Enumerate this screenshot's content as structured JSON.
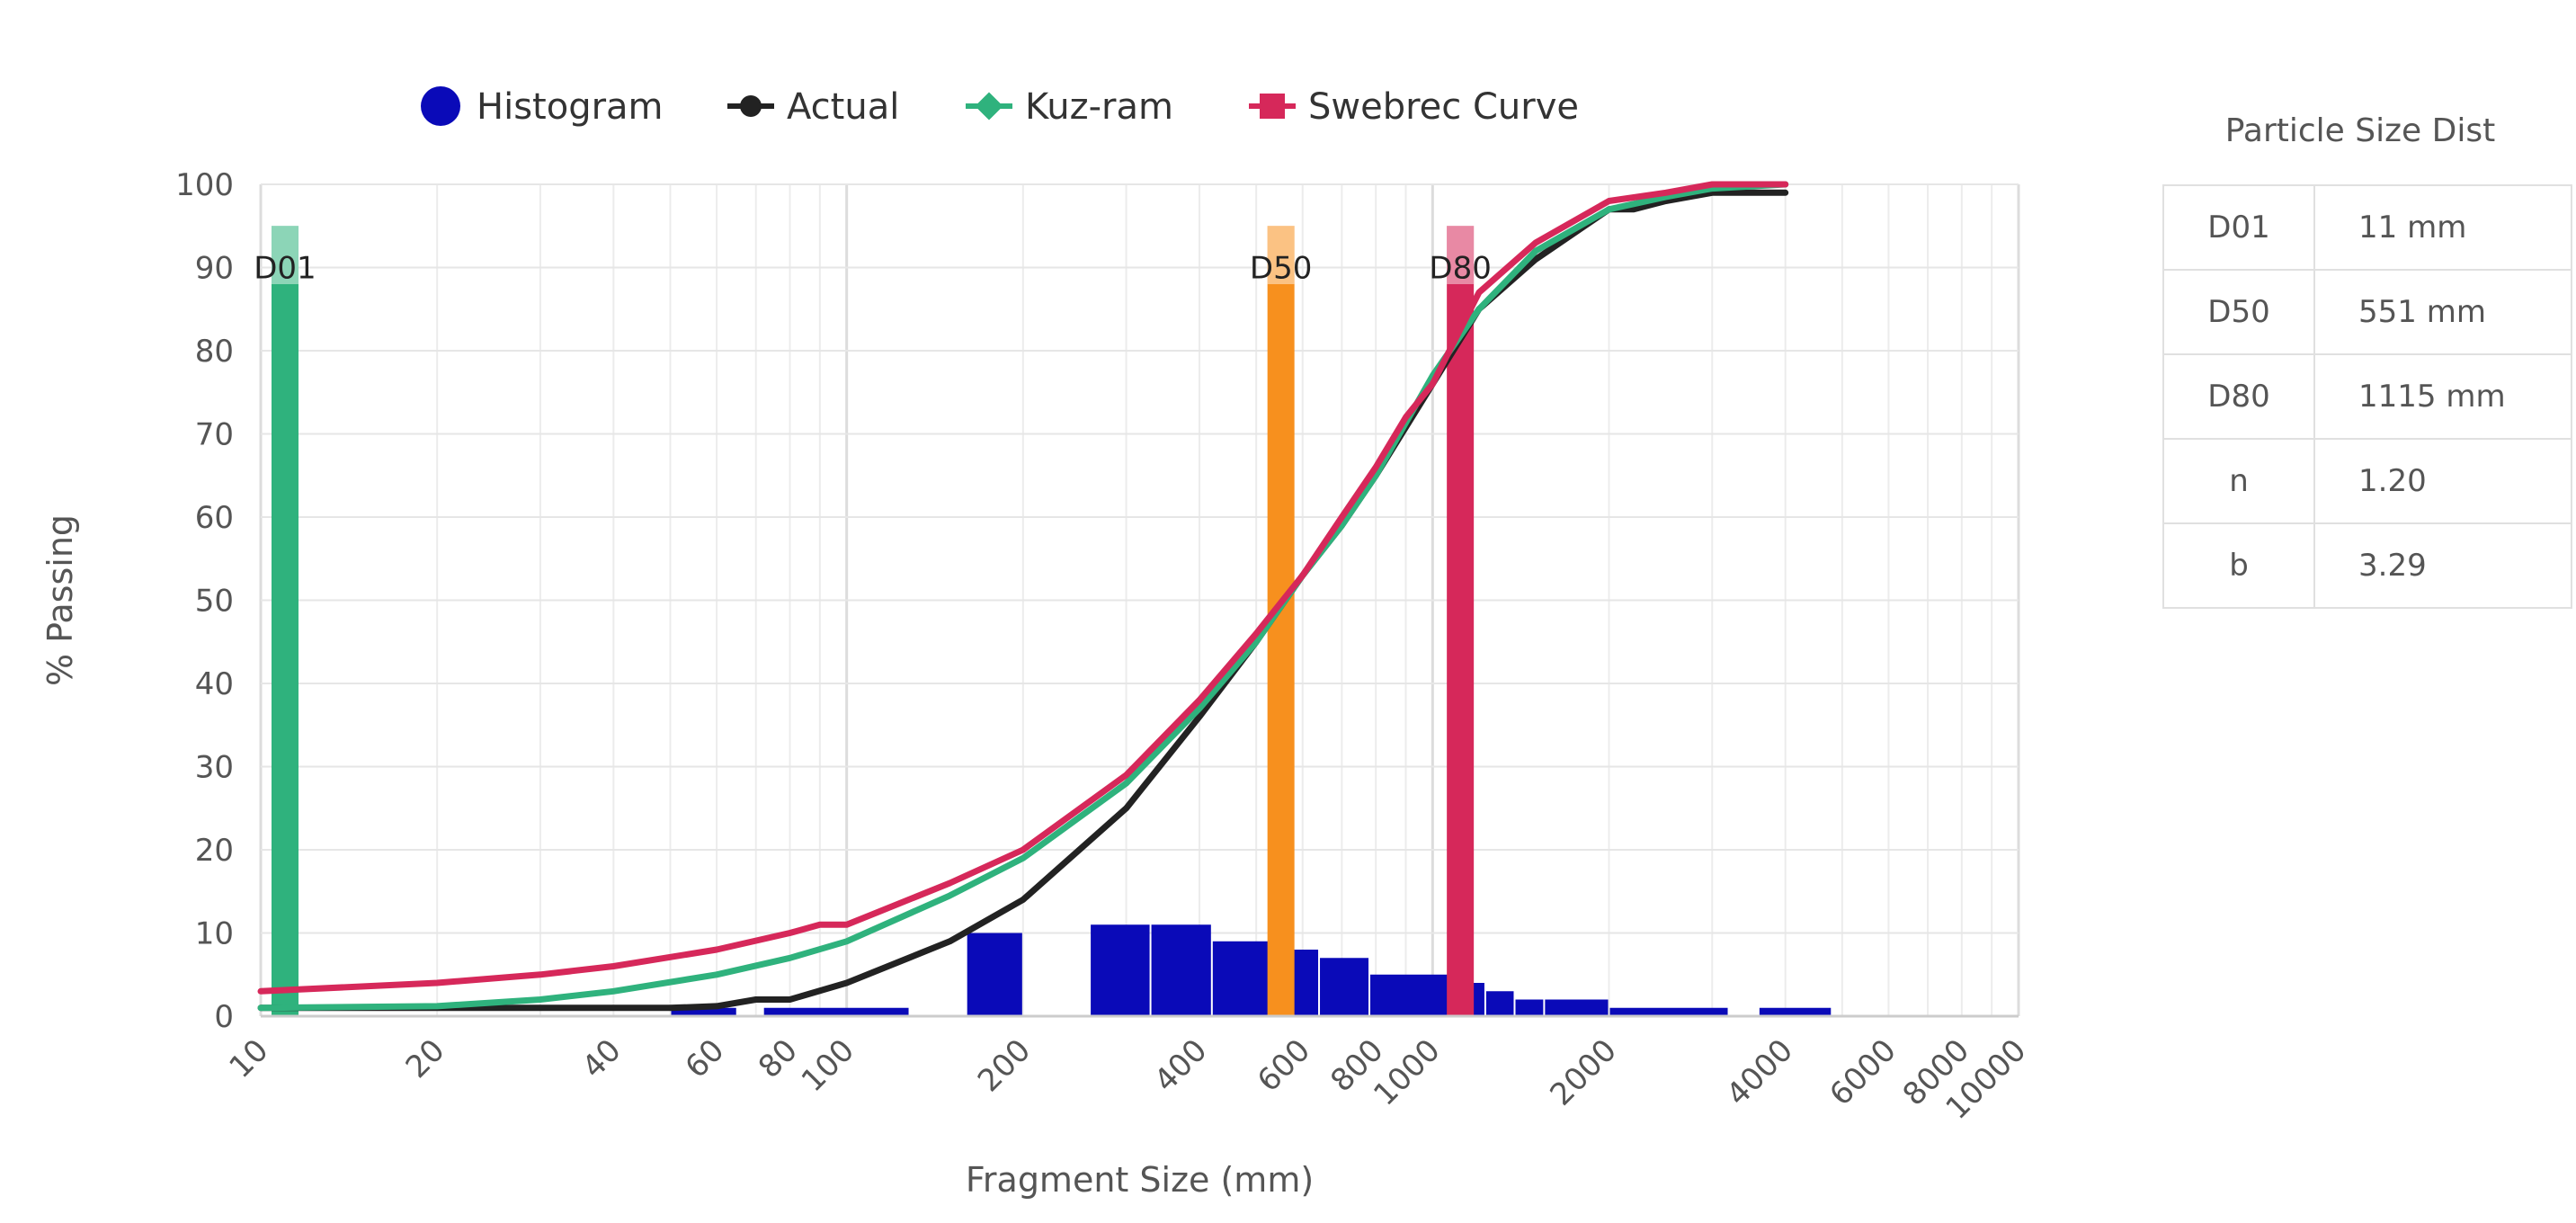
{
  "chart_data": {
    "type": "line",
    "title": "",
    "xlabel": "Fragment Size (mm)",
    "ylabel": "% Passing",
    "x_scale": "log",
    "xlim": [
      10,
      10000
    ],
    "ylim": [
      0,
      100
    ],
    "x_ticks": [
      10,
      20,
      40,
      60,
      80,
      100,
      200,
      400,
      600,
      800,
      1000,
      2000,
      4000,
      6000,
      8000,
      10000
    ],
    "x_tick_labels": [
      "10",
      "20",
      "40",
      "60",
      "80",
      "100",
      "200",
      "400",
      "600",
      "800",
      "1000",
      "2000",
      "4000",
      "6000",
      "8000",
      "10000"
    ],
    "y_ticks": [
      0,
      10,
      20,
      30,
      40,
      50,
      60,
      70,
      80,
      90,
      100
    ],
    "y_tick_labels": [
      "0",
      "10",
      "20",
      "30",
      "40",
      "50",
      "60",
      "70",
      "80",
      "90",
      "100"
    ],
    "grid": true,
    "legend_position": "top-center",
    "legend": [
      {
        "name": "Histogram",
        "color": "#0a0ab8"
      },
      {
        "name": "Actual",
        "color": "#222222"
      },
      {
        "name": "Kuz-ram",
        "color": "#2fb27d"
      },
      {
        "name": "Swebrec Curve",
        "color": "#d6285a"
      }
    ],
    "histogram": {
      "name": "Histogram",
      "color": "#0a0ab8",
      "bins": [
        {
          "x0": 50,
          "x1": 65,
          "y": 1
        },
        {
          "x0": 72,
          "x1": 128,
          "y": 1
        },
        {
          "x0": 160,
          "x1": 200,
          "y": 10
        },
        {
          "x0": 260,
          "x1": 330,
          "y": 11
        },
        {
          "x0": 330,
          "x1": 420,
          "y": 11
        },
        {
          "x0": 420,
          "x1": 525,
          "y": 9
        },
        {
          "x0": 525,
          "x1": 640,
          "y": 8
        },
        {
          "x0": 640,
          "x1": 780,
          "y": 7
        },
        {
          "x0": 780,
          "x1": 1100,
          "y": 5
        },
        {
          "x0": 1100,
          "x1": 1230,
          "y": 4
        },
        {
          "x0": 1230,
          "x1": 1380,
          "y": 3
        },
        {
          "x0": 1380,
          "x1": 1550,
          "y": 2
        },
        {
          "x0": 1550,
          "x1": 2000,
          "y": 2
        },
        {
          "x0": 2000,
          "x1": 3200,
          "y": 1
        },
        {
          "x0": 3600,
          "x1": 4800,
          "y": 1
        }
      ]
    },
    "series": [
      {
        "name": "Actual",
        "color": "#222222",
        "x": [
          10,
          20,
          30,
          40,
          50,
          60,
          70,
          80,
          100,
          150,
          200,
          300,
          400,
          500,
          600,
          700,
          800,
          1000,
          1200,
          1500,
          2000,
          2200,
          2500,
          3000,
          4000
        ],
        "y": [
          1,
          1,
          1,
          1,
          1,
          1.2,
          2,
          2,
          4,
          9,
          14,
          25,
          36,
          45,
          53,
          59,
          65,
          76,
          85,
          91,
          97,
          97,
          98,
          99,
          99
        ]
      },
      {
        "name": "Kuz-ram",
        "color": "#2fb27d",
        "x": [
          10,
          20,
          30,
          40,
          60,
          80,
          100,
          150,
          200,
          300,
          400,
          500,
          600,
          700,
          800,
          1000,
          1200,
          1500,
          2000,
          2500,
          3000,
          4000
        ],
        "y": [
          1,
          1.2,
          2,
          3,
          5,
          7,
          9,
          14.5,
          19,
          28,
          37,
          45,
          53,
          59,
          65,
          77,
          85,
          92,
          97,
          98.5,
          99.5,
          100
        ]
      },
      {
        "name": "Swebrec Curve",
        "color": "#d6285a",
        "x": [
          10,
          20,
          30,
          40,
          60,
          80,
          90,
          100,
          150,
          200,
          300,
          400,
          500,
          600,
          700,
          800,
          900,
          1000,
          1200,
          1500,
          2000,
          2500,
          3000,
          4000
        ],
        "y": [
          3,
          4,
          5,
          6,
          8,
          10,
          11,
          11,
          16,
          20,
          29,
          38,
          46,
          53,
          60,
          66,
          72,
          76,
          87,
          93,
          98,
          99,
          100,
          100
        ]
      }
    ],
    "markers": [
      {
        "label": "D01",
        "x": 11,
        "color": "#2fb27d"
      },
      {
        "label": "D50",
        "x": 551,
        "color": "#f7901e"
      },
      {
        "label": "D80",
        "x": 1115,
        "color": "#d6285a"
      }
    ]
  },
  "table": {
    "title": "Particle Size Dist",
    "rows": [
      {
        "key": "D01",
        "value": "11 mm"
      },
      {
        "key": "D50",
        "value": "551 mm"
      },
      {
        "key": "D80",
        "value": "1115 mm"
      },
      {
        "key": "n",
        "value": "1.20"
      },
      {
        "key": "b",
        "value": "3.29"
      }
    ]
  }
}
